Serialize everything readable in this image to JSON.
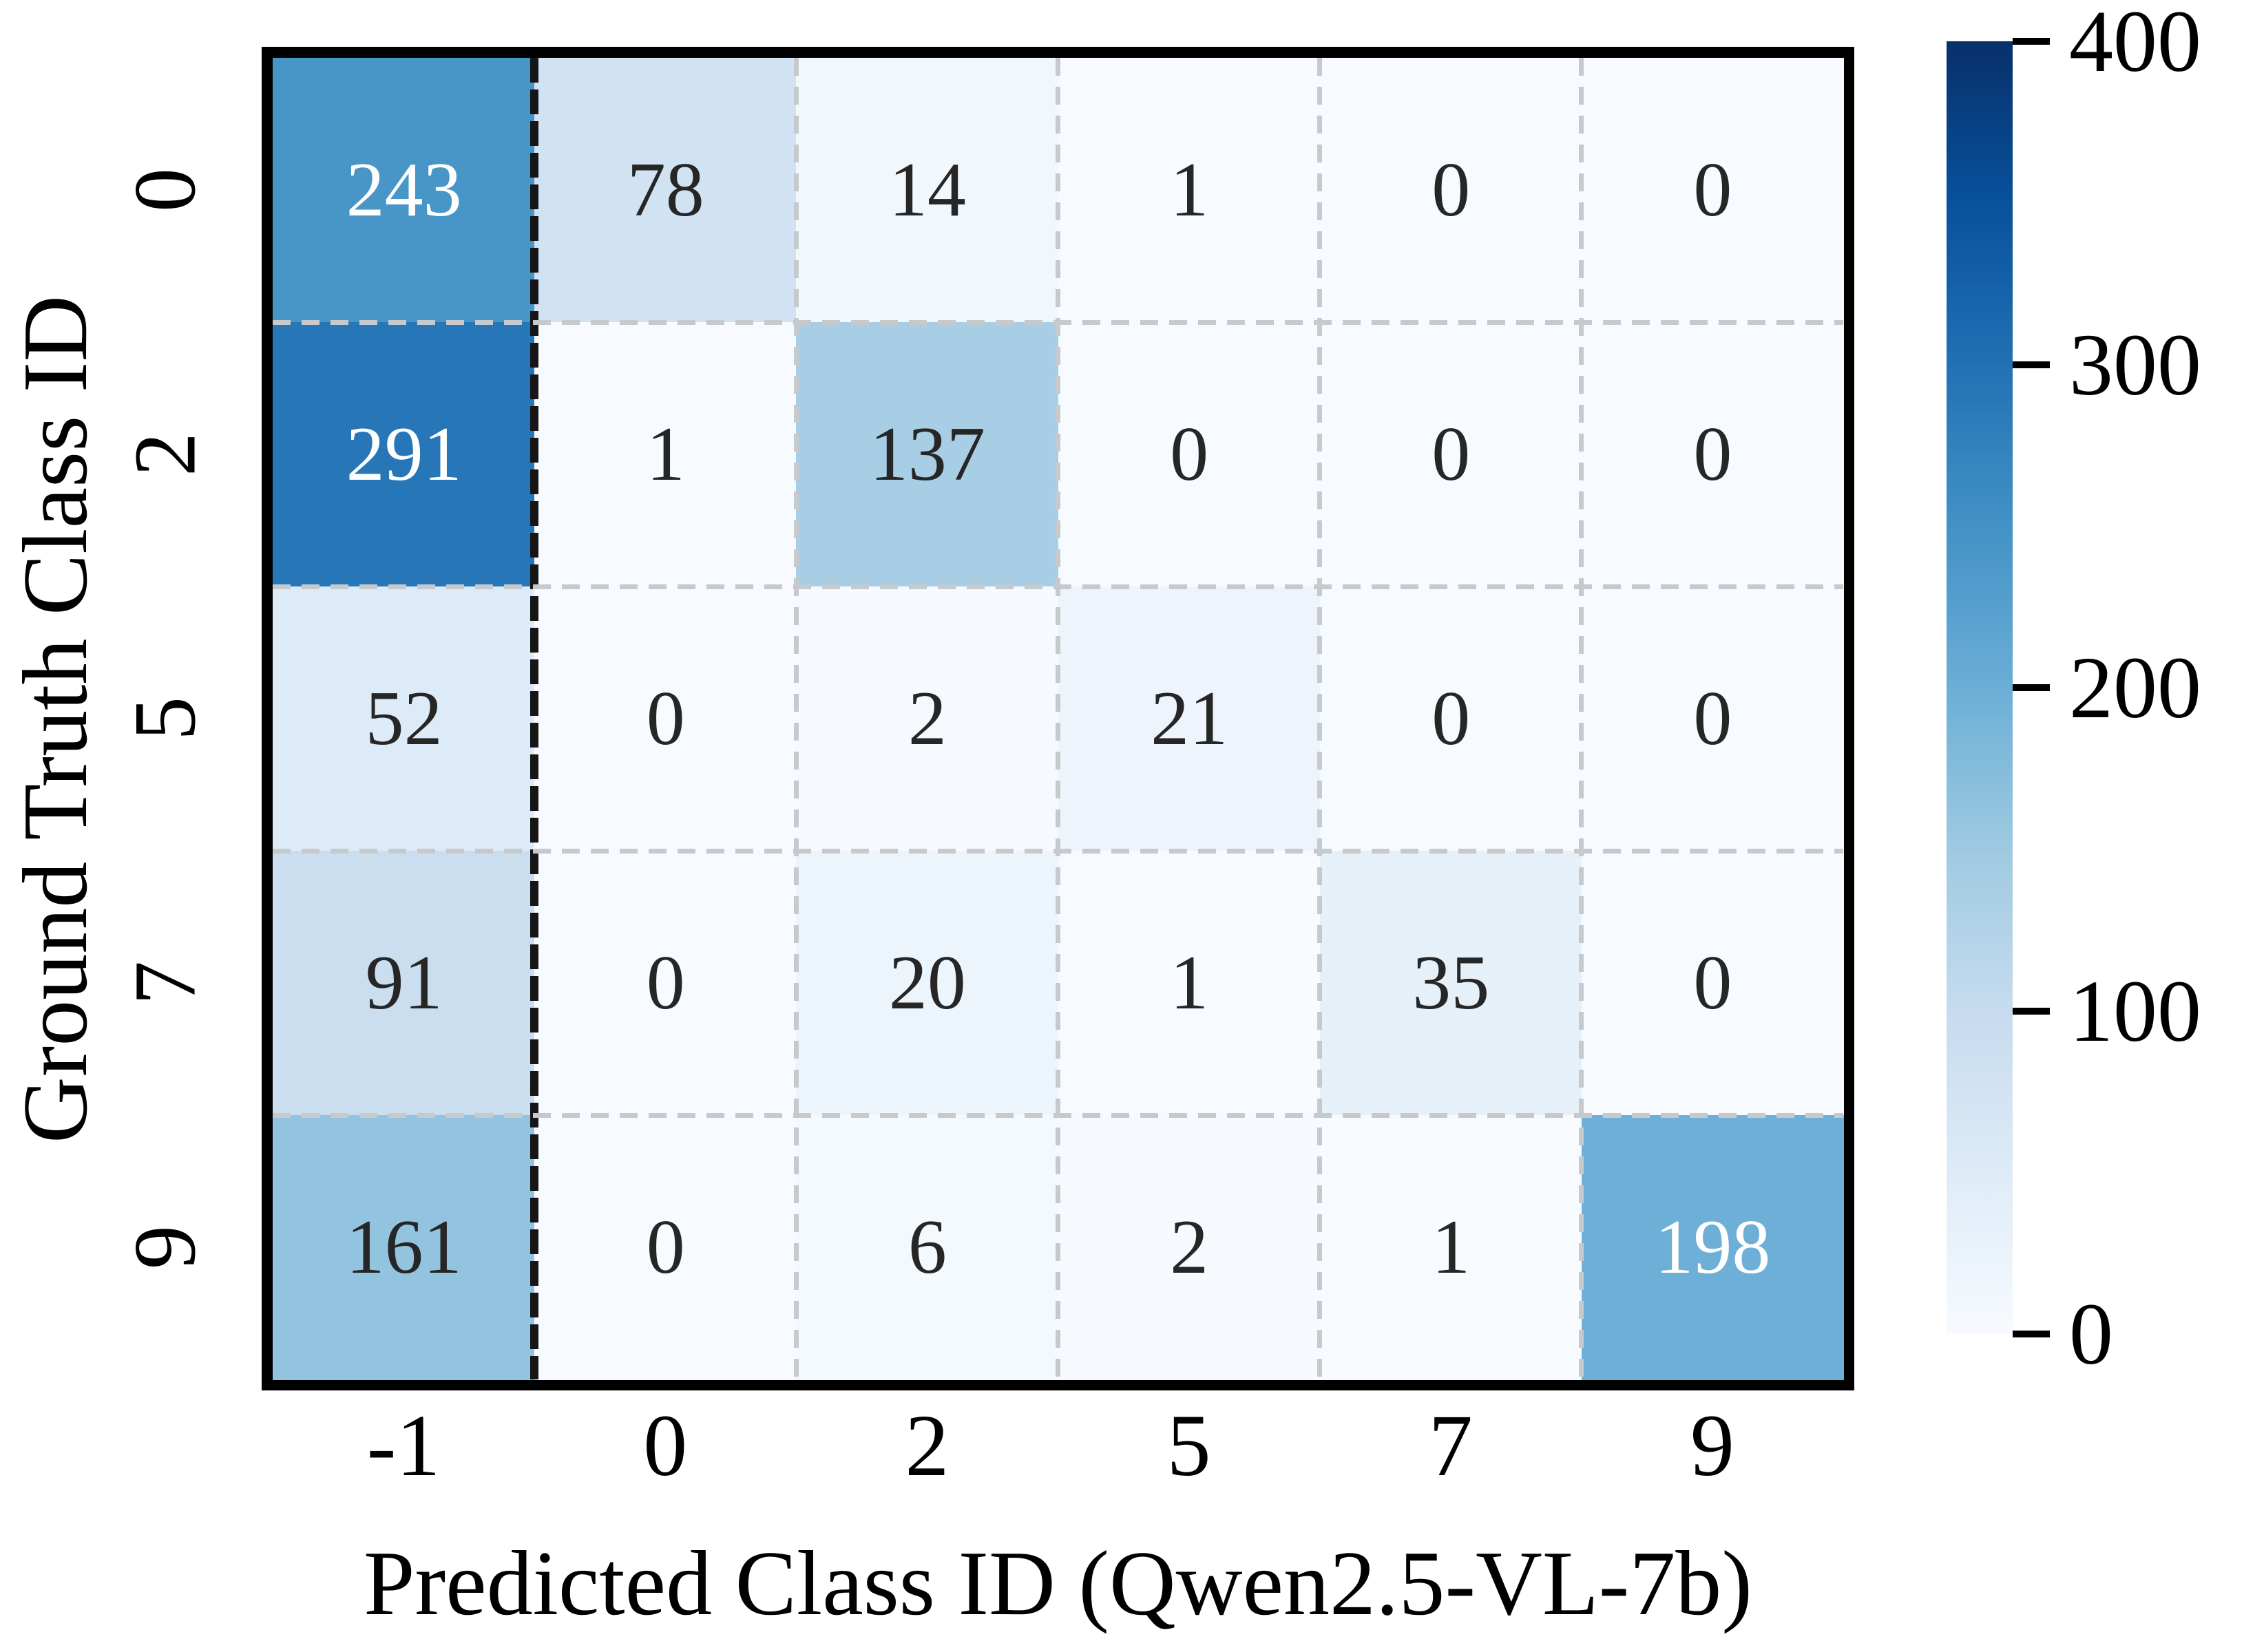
{
  "chart_data": {
    "type": "heatmap",
    "title": "",
    "xlabel": "Predicted Class ID (Qwen2.5-VL-7b)",
    "ylabel": "Ground Truth Class ID",
    "x_categories": [
      "-1",
      "0",
      "2",
      "5",
      "7",
      "9"
    ],
    "y_categories": [
      "0",
      "2",
      "5",
      "7",
      "9"
    ],
    "values": [
      [
        243,
        78,
        14,
        1,
        0,
        0
      ],
      [
        291,
        1,
        137,
        0,
        0,
        0
      ],
      [
        52,
        0,
        2,
        21,
        0,
        0
      ],
      [
        91,
        0,
        20,
        1,
        35,
        0
      ],
      [
        161,
        0,
        6,
        2,
        1,
        198
      ]
    ],
    "vmin": 0,
    "vmax": 400,
    "annotated": true,
    "grid": "dashed",
    "separator_after_column_index": 0,
    "legend_position": "none",
    "colorbar": {
      "position": "right",
      "ticks": [
        400,
        300,
        200,
        100,
        0
      ]
    }
  },
  "style": {
    "colormap_name": "Blues",
    "colormap_stops": [
      "#f7fbff",
      "#deebf7",
      "#c6dbef",
      "#9ecae1",
      "#6baed6",
      "#4292c6",
      "#2171b5",
      "#08519c",
      "#08306b"
    ],
    "annotation_dark_text": "#262626",
    "annotation_light_text": "#ffffff",
    "grid_line_color": "#c6cacd",
    "separator_line_color": "#161616",
    "frame_color": "#000000",
    "tick_color": "#000000"
  }
}
